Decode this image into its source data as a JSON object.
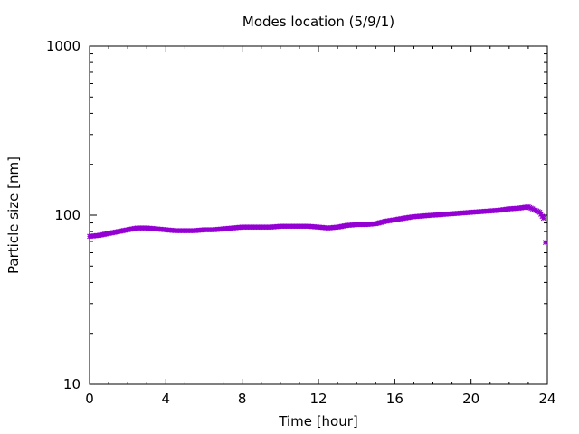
{
  "chart_data": {
    "type": "scatter",
    "title": "Modes location (5/9/1)",
    "xlabel": "Time [hour]",
    "ylabel": "Particle size [nm]",
    "xlim": [
      0,
      24
    ],
    "ylim": [
      10,
      1000
    ],
    "yscale": "log",
    "xticks": [
      "0",
      "4",
      "8",
      "12",
      "16",
      "20",
      "24"
    ],
    "yticks": [
      "10",
      "100",
      "1000"
    ],
    "grid": false,
    "legend": "none",
    "marker_color": "#9400d3",
    "x": [
      0,
      0.5,
      1,
      1.5,
      2,
      2.5,
      3,
      3.5,
      4,
      4.5,
      5,
      5.5,
      6,
      6.5,
      7,
      7.5,
      8,
      8.5,
      9,
      9.5,
      10,
      10.5,
      11,
      11.5,
      12,
      12.5,
      13,
      13.5,
      14,
      14.5,
      15,
      15.5,
      16,
      16.5,
      17,
      17.5,
      18,
      18.5,
      19,
      19.5,
      20,
      20.5,
      21,
      21.5,
      22,
      22.5,
      23,
      23.3,
      23.6,
      23.8,
      23.9
    ],
    "y": [
      75,
      76,
      78,
      80,
      82,
      84,
      84,
      83,
      82,
      81,
      81,
      81,
      82,
      82,
      83,
      84,
      85,
      85,
      85,
      85,
      86,
      86,
      86,
      86,
      85,
      84,
      85,
      87,
      88,
      88,
      89,
      92,
      94,
      96,
      98,
      99,
      100,
      101,
      102,
      103,
      104,
      105,
      106,
      107,
      109,
      110,
      112,
      108,
      104,
      96,
      69
    ]
  }
}
